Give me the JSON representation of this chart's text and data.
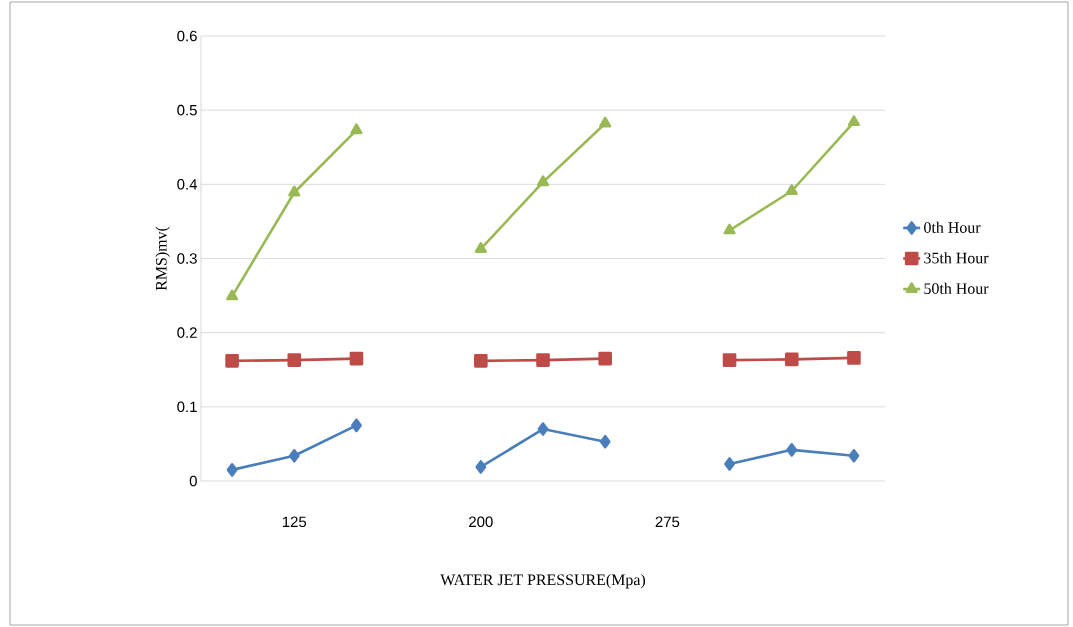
{
  "chart_data": {
    "type": "line",
    "xlabel": "WATER JET PRESSURE(Mpa)",
    "ylabel": "RMS)mv(",
    "categories": [
      null,
      "125",
      null,
      null,
      "200",
      null,
      null,
      "275",
      null,
      null,
      null
    ],
    "series": [
      {
        "name": "0th Hour",
        "color": "#4a7ebb",
        "marker": "diamond",
        "values": [
          0.015,
          0.034,
          0.075,
          null,
          0.019,
          0.07,
          0.053,
          null,
          0.023,
          0.042,
          0.034
        ]
      },
      {
        "name": "35th Hour",
        "color": "#be4b48",
        "marker": "square",
        "values": [
          0.162,
          0.163,
          0.165,
          null,
          0.162,
          0.163,
          0.165,
          null,
          0.163,
          0.164,
          0.166
        ]
      },
      {
        "name": "50th Hour",
        "color": "#98b954",
        "marker": "triangle",
        "values": [
          0.249,
          0.389,
          0.473,
          null,
          0.313,
          0.403,
          0.482,
          null,
          0.338,
          0.391,
          0.484
        ]
      }
    ],
    "ylim": [
      0,
      0.6
    ],
    "yticks": [
      0,
      0.1,
      0.2,
      0.3,
      0.4,
      0.5,
      0.6
    ],
    "grid": "y",
    "legend": "right"
  }
}
